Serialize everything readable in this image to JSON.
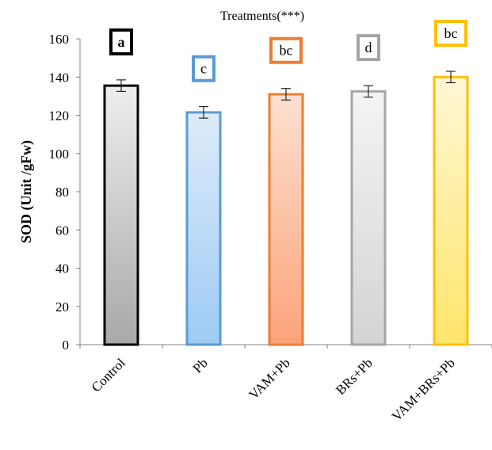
{
  "chart_data": {
    "type": "bar",
    "title": "Treatments(***)",
    "xlabel": "",
    "ylabel": "SOD (Unit /gFw)",
    "ylim": [
      0,
      160
    ],
    "yticks": [
      0,
      20,
      40,
      60,
      80,
      100,
      120,
      140,
      160
    ],
    "grid": false,
    "legend": "none",
    "categories": [
      "Control",
      "Pb",
      "VAM+Pb",
      "BRs+Pb",
      "VAM+BRs+Pb"
    ],
    "values": [
      135.5,
      121.5,
      131,
      132.5,
      140
    ],
    "errors": [
      3,
      3,
      3,
      3,
      3
    ],
    "significance_letters": [
      "a",
      "c",
      "bc",
      "d",
      "bc"
    ],
    "colors": {
      "border": [
        "#000000",
        "#5b9bd5",
        "#ed7d31",
        "#a5a5a5",
        "#ffc000"
      ],
      "fill_top": [
        "#eeeeee",
        "#deebf9",
        "#fde0d1",
        "#f4f4f4",
        "#fff7d6"
      ],
      "fill_bottom": [
        "#a8a8a8",
        "#9ecbf5",
        "#fba37a",
        "#d4d4d4",
        "#ffe56b"
      ]
    }
  }
}
